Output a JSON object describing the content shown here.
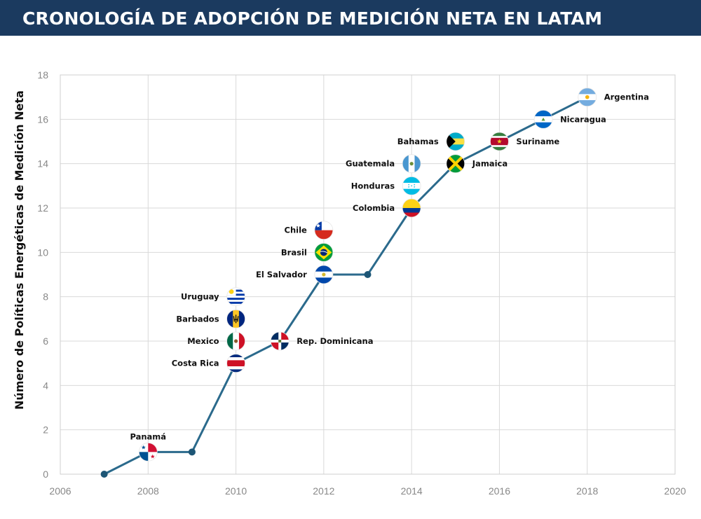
{
  "header": {
    "title": "CRONOLOGÍA DE ADOPCIÓN DE MEDICIÓN NETA EN LATAM",
    "background": "#1b3a5f",
    "text_color": "#ffffff"
  },
  "chart_data": {
    "type": "line",
    "title": "",
    "xlabel": "",
    "ylabel": "Número de Políticas Energéticas de Medición Neta",
    "xlim": [
      2006,
      2020
    ],
    "ylim": [
      0,
      18
    ],
    "xticks": [
      2006,
      2008,
      2010,
      2012,
      2014,
      2016,
      2018,
      2020
    ],
    "yticks": [
      0,
      2,
      4,
      6,
      8,
      10,
      12,
      14,
      16,
      18
    ],
    "grid": true,
    "line_color": "#2b6a8c",
    "marker_color": "#1d5676",
    "series": [
      {
        "x": [
          2007,
          2008,
          2009,
          2010,
          2011,
          2012,
          2013,
          2014,
          2015,
          2016,
          2017,
          2018
        ],
        "y": [
          0,
          1,
          1,
          5,
          6,
          9,
          9,
          12,
          14,
          15,
          16,
          17
        ]
      }
    ],
    "annotations": [
      {
        "country": "Panamá",
        "year": 2008,
        "count": 1,
        "flag": "panama-flag-icon",
        "label_side": "top"
      },
      {
        "country": "Costa Rica",
        "year": 2010,
        "count": 5,
        "flag": "costa-rica-flag-icon",
        "label_side": "left"
      },
      {
        "country": "Mexico",
        "year": 2010,
        "count": 6,
        "flag": "mexico-flag-icon",
        "label_side": "left"
      },
      {
        "country": "Barbados",
        "year": 2010,
        "count": 7,
        "flag": "barbados-flag-icon",
        "label_side": "left"
      },
      {
        "country": "Uruguay",
        "year": 2010,
        "count": 8,
        "flag": "uruguay-flag-icon",
        "label_side": "left"
      },
      {
        "country": "Rep. Dominicana",
        "year": 2011,
        "count": 6,
        "flag": "dominican-republic-flag-icon",
        "label_side": "right"
      },
      {
        "country": "El Salvador",
        "year": 2012,
        "count": 9,
        "flag": "el-salvador-flag-icon",
        "label_side": "left"
      },
      {
        "country": "Brasil",
        "year": 2012,
        "count": 10,
        "flag": "brazil-flag-icon",
        "label_side": "left"
      },
      {
        "country": "Chile",
        "year": 2012,
        "count": 11,
        "flag": "chile-flag-icon",
        "label_side": "left"
      },
      {
        "country": "Colombia",
        "year": 2014,
        "count": 12,
        "flag": "colombia-flag-icon",
        "label_side": "left"
      },
      {
        "country": "Honduras",
        "year": 2014,
        "count": 13,
        "flag": "honduras-flag-icon",
        "label_side": "left"
      },
      {
        "country": "Guatemala",
        "year": 2014,
        "count": 14,
        "flag": "guatemala-flag-icon",
        "label_side": "left"
      },
      {
        "country": "Jamaica",
        "year": 2015,
        "count": 14,
        "flag": "jamaica-flag-icon",
        "label_side": "right"
      },
      {
        "country": "Bahamas",
        "year": 2015,
        "count": 15,
        "flag": "bahamas-flag-icon",
        "label_side": "left"
      },
      {
        "country": "Suriname",
        "year": 2016,
        "count": 15,
        "flag": "suriname-flag-icon",
        "label_side": "right"
      },
      {
        "country": "Nicaragua",
        "year": 2017,
        "count": 16,
        "flag": "nicaragua-flag-icon",
        "label_side": "right"
      },
      {
        "country": "Argentina",
        "year": 2018,
        "count": 17,
        "flag": "argentina-flag-icon",
        "label_side": "right"
      }
    ]
  }
}
